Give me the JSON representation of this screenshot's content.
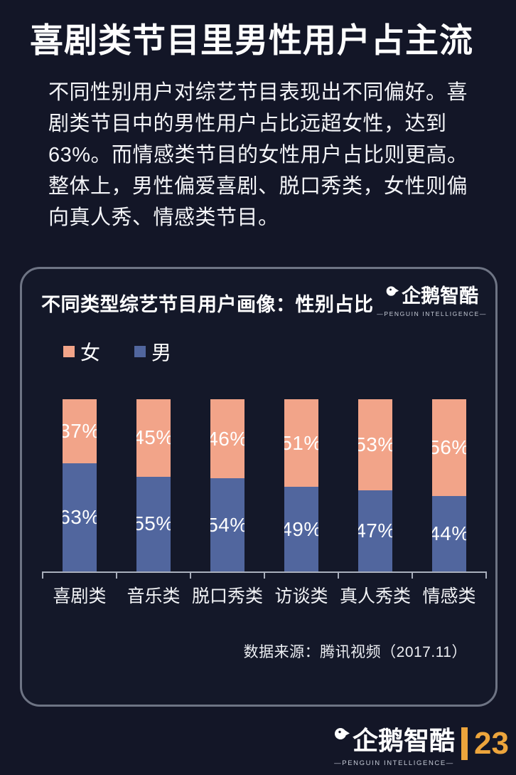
{
  "page": {
    "bg_color": "#131627",
    "title": "喜剧类节目里男性用户占主流",
    "paragraph": "不同性别用户对综艺节目表现出不同偏好。喜剧类节目中的男性用户占比远超女性，达到63%。而情感类节目的女性用户占比则更高。整体上，男性偏爱喜剧、脱口秀类，女性则偏向真人秀、情感类节目。"
  },
  "brand": {
    "name": "企鹅智酷",
    "sub": "—PENGUIN INTELLIGENCE—"
  },
  "chart": {
    "title": "不同类型综艺节目用户画像：性别占比",
    "source": "数据来源：腾讯视频（2017.11）"
  },
  "chart_data": {
    "type": "bar",
    "stacked": true,
    "stack_order": "first-series-on-top",
    "title": "不同类型综艺节目用户画像：性别占比",
    "categories": [
      "喜剧类",
      "音乐类",
      "脱口秀类",
      "访谈类",
      "真人秀类",
      "情感类"
    ],
    "series": [
      {
        "name": "女",
        "color": "#F2A489",
        "values": [
          37,
          45,
          46,
          51,
          53,
          56
        ]
      },
      {
        "name": "男",
        "color": "#51669E",
        "values": [
          63,
          55,
          54,
          49,
          47,
          44
        ]
      }
    ],
    "value_suffix": "%",
    "ylim": [
      0,
      100
    ],
    "legend_position": "top-left",
    "grid": false,
    "xlabel": "",
    "ylabel": ""
  },
  "footer": {
    "page_number": "23",
    "accent_color": "#EDA53C"
  }
}
